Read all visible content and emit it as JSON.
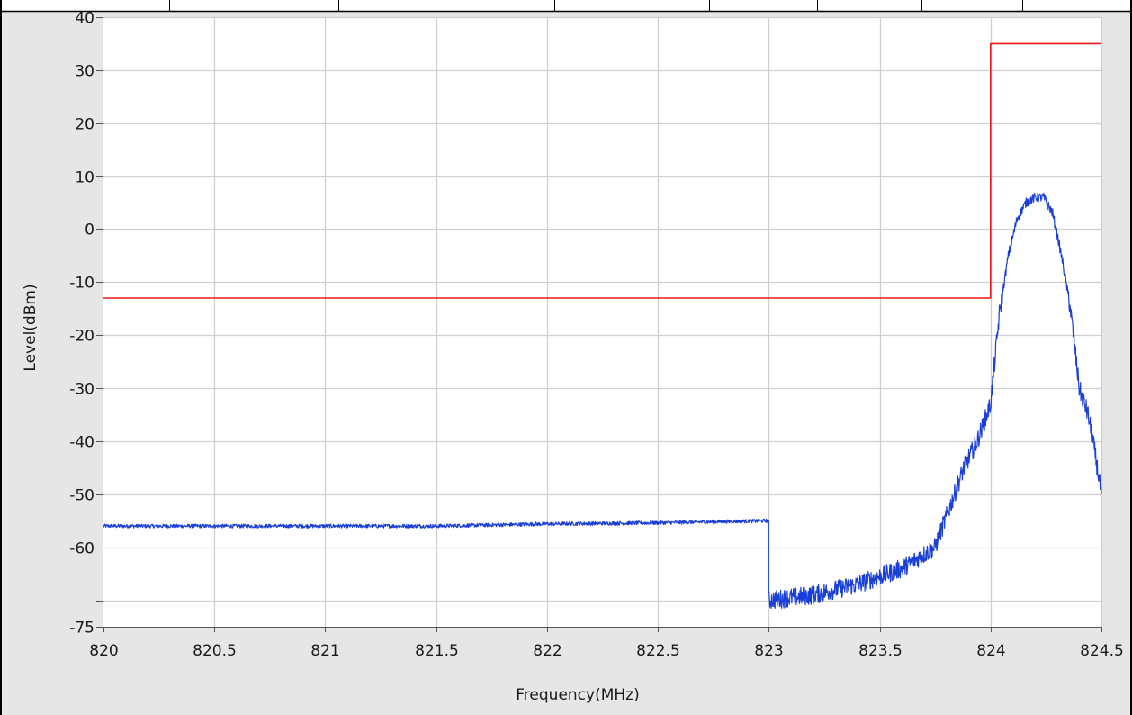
{
  "chart_data": {
    "type": "line",
    "title": "",
    "xlabel": "Frequency(MHz)",
    "ylabel": "Level(dBm)",
    "xlim": [
      820,
      824.5
    ],
    "ylim": [
      -75,
      40
    ],
    "grid": true,
    "x_ticks": [
      820,
      820.5,
      821,
      821.5,
      822,
      822.5,
      823,
      823.5,
      824,
      824.5
    ],
    "x_tick_labels": [
      "820",
      "820.5",
      "821",
      "821.5",
      "822",
      "822.5",
      "823",
      "823.5",
      "824",
      "824.5"
    ],
    "y_ticks": [
      40,
      30,
      20,
      10,
      0,
      -10,
      -20,
      -30,
      -40,
      -50,
      -60,
      -70,
      -75
    ],
    "y_tick_labels": [
      "40",
      "30",
      "20",
      "10",
      "0",
      "-10",
      "-20",
      "-30",
      "-40",
      "-50",
      "-60",
      "",
      "-75"
    ],
    "series": [
      {
        "color": "#e81919",
        "x": [
          820,
          824,
          824,
          824.5
        ],
        "y": [
          -13,
          -13,
          35,
          35
        ]
      },
      {
        "color": "#1a3fd6",
        "x": [
          820,
          820.5,
          821,
          821.5,
          822,
          822.5,
          823,
          823,
          823.2,
          823.4,
          823.6,
          823.75,
          823.82,
          823.88,
          823.94,
          824.0,
          824.04,
          824.08,
          824.12,
          824.16,
          824.2,
          824.24,
          824.28,
          824.32,
          824.36,
          824.4,
          824.44,
          824.47,
          824.5
        ],
        "y": [
          -56,
          -56,
          -56,
          -56,
          -55.6,
          -55.4,
          -55,
          -70,
          -69,
          -67,
          -64,
          -60,
          -52,
          -45,
          -40,
          -33,
          -16,
          -5,
          2,
          5,
          6,
          6,
          3,
          -5,
          -15,
          -30,
          -35,
          -42,
          -50
        ]
      }
    ]
  }
}
